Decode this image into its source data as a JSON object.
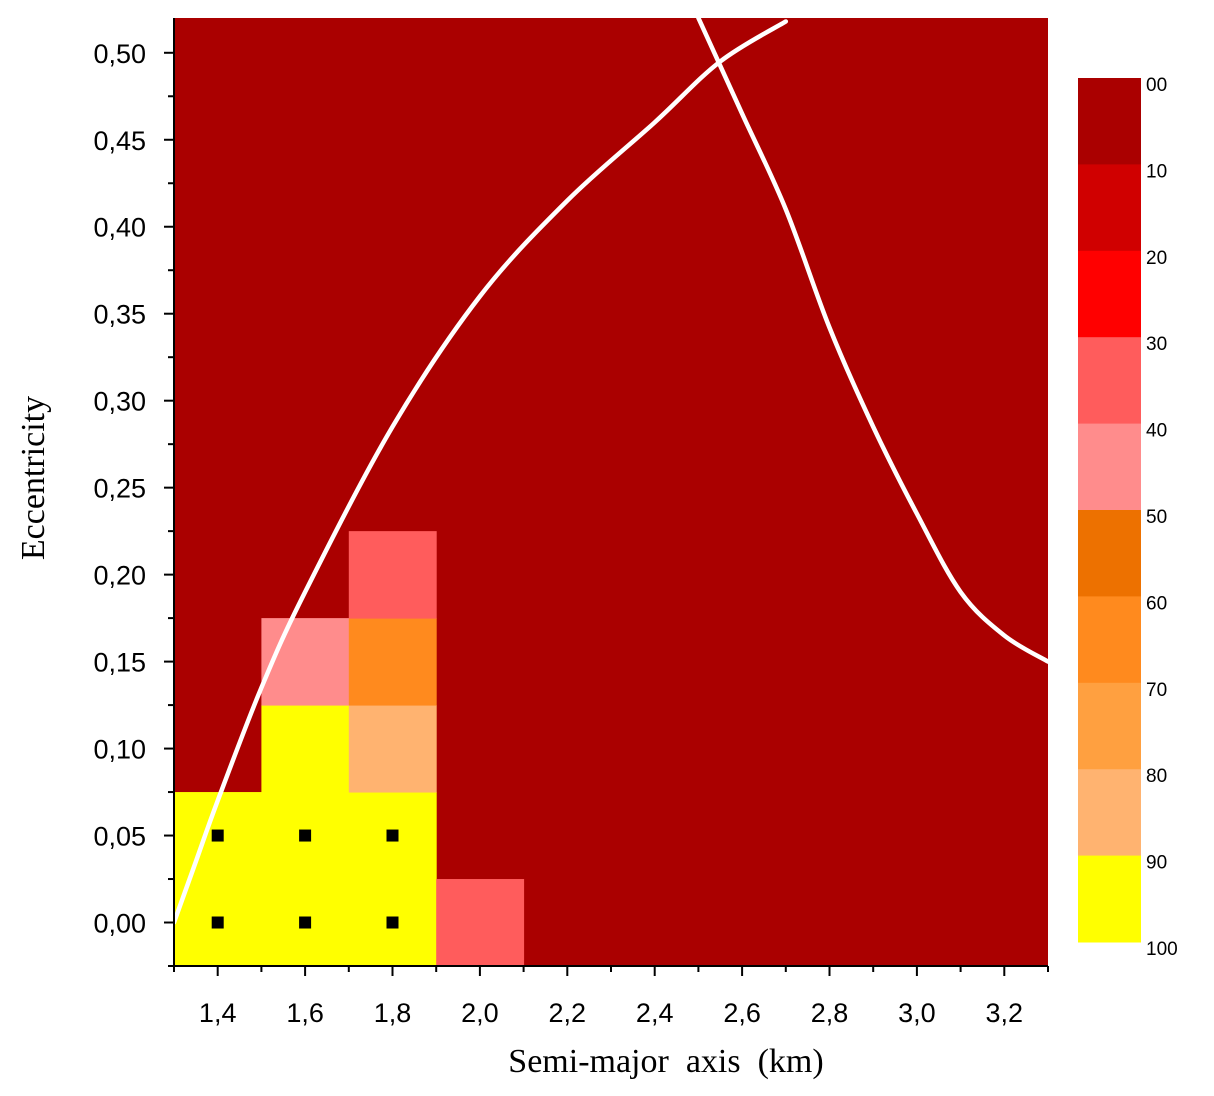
{
  "chart_data": {
    "type": "heatmap",
    "xlabel": "Semi-major  axis  (km)",
    "ylabel": "Eccentricity",
    "xlim": [
      1.3,
      3.3
    ],
    "ylim": [
      -0.025,
      0.52
    ],
    "x_ticks": [
      "1,4",
      "1,6",
      "1,8",
      "2,0",
      "2,2",
      "2,4",
      "2,6",
      "2,8",
      "3,0",
      "3,2"
    ],
    "x_tick_values": [
      1.4,
      1.6,
      1.8,
      2.0,
      2.2,
      2.4,
      2.6,
      2.8,
      3.0,
      3.2
    ],
    "y_ticks": [
      "0,00",
      "0,05",
      "0,10",
      "0,15",
      "0,20",
      "0,25",
      "0,30",
      "0,35",
      "0,40",
      "0,45",
      "0,50"
    ],
    "y_tick_values": [
      0.0,
      0.05,
      0.1,
      0.15,
      0.2,
      0.25,
      0.3,
      0.35,
      0.4,
      0.45,
      0.5
    ],
    "background_level": "00",
    "cells": [
      {
        "x": 1.4,
        "y": 0.0,
        "level": "100"
      },
      {
        "x": 1.4,
        "y": 0.05,
        "level": "100"
      },
      {
        "x": 1.6,
        "y": 0.0,
        "level": "100"
      },
      {
        "x": 1.6,
        "y": 0.05,
        "level": "100"
      },
      {
        "x": 1.6,
        "y": 0.1,
        "level": "100"
      },
      {
        "x": 1.6,
        "y": 0.15,
        "level": "50"
      },
      {
        "x": 1.8,
        "y": 0.0,
        "level": "100"
      },
      {
        "x": 1.8,
        "y": 0.05,
        "level": "100"
      },
      {
        "x": 1.8,
        "y": 0.1,
        "level": "90"
      },
      {
        "x": 1.8,
        "y": 0.15,
        "level": "70"
      },
      {
        "x": 1.8,
        "y": 0.2,
        "level": "40"
      },
      {
        "x": 2.0,
        "y": 0.0,
        "level": "40"
      }
    ],
    "markers": [
      {
        "x": 1.4,
        "y": 0.0
      },
      {
        "x": 1.6,
        "y": 0.0
      },
      {
        "x": 1.8,
        "y": 0.0
      },
      {
        "x": 1.4,
        "y": 0.05
      },
      {
        "x": 1.6,
        "y": 0.05
      },
      {
        "x": 1.8,
        "y": 0.05
      }
    ],
    "curves": [
      {
        "color": "#ffffff",
        "points": [
          [
            1.3,
            0.0
          ],
          [
            1.35,
            0.035
          ],
          [
            1.4,
            0.07
          ],
          [
            1.5,
            0.135
          ],
          [
            1.6,
            0.19
          ],
          [
            1.8,
            0.285
          ],
          [
            2.0,
            0.36
          ],
          [
            2.2,
            0.415
          ],
          [
            2.4,
            0.46
          ],
          [
            2.55,
            0.495
          ],
          [
            2.7,
            0.518
          ]
        ]
      },
      {
        "color": "#ffffff",
        "points": [
          [
            2.5,
            0.52
          ],
          [
            2.6,
            0.465
          ],
          [
            2.7,
            0.41
          ],
          [
            2.8,
            0.342
          ],
          [
            2.9,
            0.285
          ],
          [
            3.0,
            0.235
          ],
          [
            3.1,
            0.19
          ],
          [
            3.2,
            0.165
          ],
          [
            3.3,
            0.15
          ]
        ]
      }
    ],
    "colorbar": {
      "labels": [
        "00",
        "10",
        "20",
        "30",
        "40",
        "50",
        "60",
        "70",
        "80",
        "90",
        "100"
      ],
      "colors": [
        "#aa0000",
        "#d00000",
        "#ff0000",
        "#ff5c5c",
        "#ff8c8c",
        "#ed7100",
        "#ff8a1e",
        "#ffa040",
        "#ffb370",
        "#ffff00"
      ],
      "levels": {
        "00": "#aa0000",
        "10": "#d00000",
        "20": "#ff0000",
        "30": "#ff5c5c",
        "40": "#ff5c5c",
        "50": "#ff8c8c",
        "60": "#ed7100",
        "70": "#ff8a1e",
        "80": "#ffa040",
        "90": "#ffb370",
        "100": "#ffff00"
      }
    }
  }
}
